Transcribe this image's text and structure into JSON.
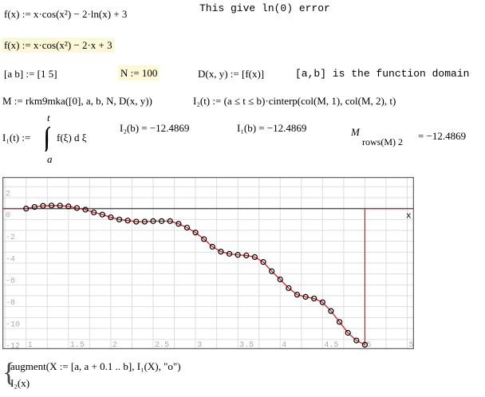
{
  "worksheet": {
    "eq1": "f(x) := x·cos(x²) − 2·ln(x) + 3",
    "comment1": "This give ln(0) error",
    "eq2": "f(x) := x·cos(x²) − 2·x + 3",
    "eq3": "[a b] := [1 5]",
    "eq4": "N := 100",
    "eq5": "D(x, y) := [f(x)]",
    "comment2": "[a,b] is the function domain",
    "eq6": "M := rkm9mka([0], a, b, N, D(x, y))",
    "eq7": "I₂(t) := (a ≤ t ≤ b)·cinterp(col(M, 1), col(M, 2), t)",
    "eq8_lhs": "I₁(t) :=",
    "eq8_upper": "t",
    "eq8_lower": "a",
    "eq8_body": "f(ξ) d ξ",
    "res1": "I₂(b) = −12.4869",
    "res2": "I₁(b) = −12.4869",
    "res3_base": "M",
    "res3_sub": "rows(M) 2",
    "res3_val": "= −12.4869",
    "plot_expr1": "augment(X := [a, a + 0.1 .. b], I₁(X), \"o\")",
    "plot_expr2": "I₂(x)",
    "axis_var": "x"
  },
  "colors": {
    "highlight": "#fdf8d8",
    "curve": "#e02020",
    "marker": "#000000",
    "grid": "#dddddd",
    "axis": "#555555",
    "string": "#a03030"
  },
  "chart_data": {
    "type": "line",
    "xlim": [
      0.72,
      5.58
    ],
    "ylim": [
      -12.9,
      2.9
    ],
    "grid": true,
    "xticks": [
      1,
      1.5,
      2,
      2.5,
      3,
      3.5,
      4,
      4.5,
      5,
      5.5
    ],
    "yticks": [
      2,
      0,
      -2,
      -4,
      -6,
      -8,
      -10,
      -12
    ],
    "xtick_labels": [
      "1",
      "1.5",
      "2",
      "2.5",
      "3",
      "3.5",
      "4",
      "4.5",
      "5",
      "5.5"
    ],
    "ytick_labels": [
      "2",
      "0",
      "-2",
      "-4",
      "-6",
      "-8",
      "-10",
      "-12"
    ],
    "series": [
      {
        "marker": "o",
        "x": [
          1,
          1.1,
          1.2,
          1.3,
          1.4,
          1.5,
          1.6,
          1.7,
          1.8,
          1.9,
          2,
          2.1,
          2.2,
          2.3,
          2.4,
          2.5,
          2.6,
          2.7,
          2.8,
          2.9,
          3,
          3.1,
          3.2,
          3.3,
          3.4,
          3.5,
          3.6,
          3.7,
          3.8,
          3.9,
          4,
          4.1,
          4.2,
          4.3,
          4.4,
          4.5,
          4.6,
          4.7,
          4.8,
          4.9,
          5
        ],
        "y": [
          0,
          0.15,
          0.25,
          0.28,
          0.27,
          0.2,
          0.05,
          -0.1,
          -0.35,
          -0.55,
          -0.8,
          -1.0,
          -1.1,
          -1.2,
          -1.2,
          -1.15,
          -1.15,
          -1.15,
          -1.4,
          -1.75,
          -2.2,
          -2.8,
          -3.5,
          -3.95,
          -4.15,
          -4.25,
          -4.3,
          -4.45,
          -4.9,
          -5.75,
          -6.5,
          -7.3,
          -7.9,
          -8.1,
          -8.25,
          -8.6,
          -9.4,
          -10.4,
          -11.4,
          -12.1,
          -12.49
        ]
      },
      {
        "note_expr": "I2",
        "outside_domain_value": 0
      }
    ]
  }
}
